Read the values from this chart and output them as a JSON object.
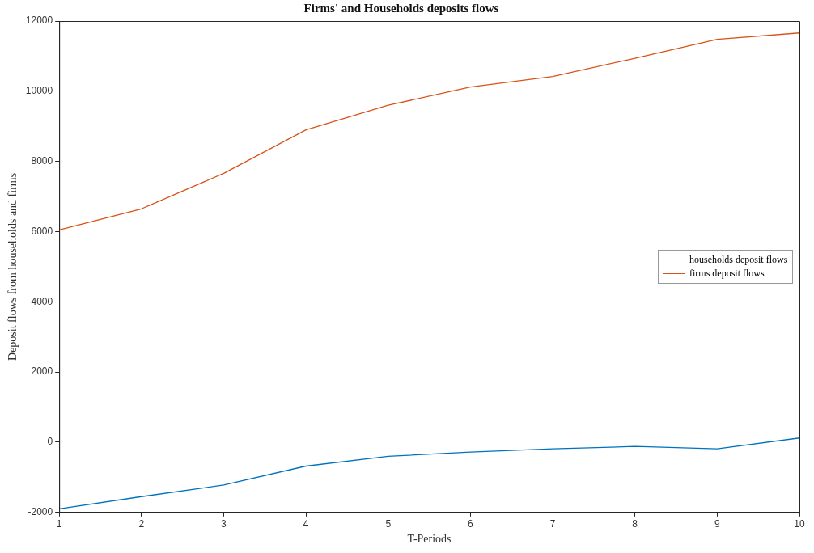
{
  "chart_data": {
    "type": "line",
    "title": "Firms' and Households deposits flows",
    "xlabel": "T-Periods",
    "ylabel": "Deposit flows from households and firms",
    "x": [
      1,
      2,
      3,
      4,
      5,
      6,
      7,
      8,
      9,
      10
    ],
    "series": [
      {
        "name": "households deposit flows",
        "color": "#0072bd",
        "values": [
          -1900,
          -1550,
          -1220,
          -680,
          -400,
          -280,
          -190,
          -120,
          -190,
          120
        ]
      },
      {
        "name": "firms deposit flows",
        "color": "#d95319",
        "values": [
          6050,
          6650,
          7660,
          8900,
          9600,
          10120,
          10420,
          10940,
          11480,
          11660
        ]
      }
    ],
    "xlim": [
      1,
      10
    ],
    "xticks": [
      1,
      2,
      3,
      4,
      5,
      6,
      7,
      8,
      9,
      10
    ],
    "ylim": [
      -2000,
      12000
    ],
    "yticks": [
      -2000,
      0,
      2000,
      4000,
      6000,
      8000,
      10000,
      12000
    ],
    "legend": "right",
    "marker": "none",
    "line_style": "solid"
  }
}
